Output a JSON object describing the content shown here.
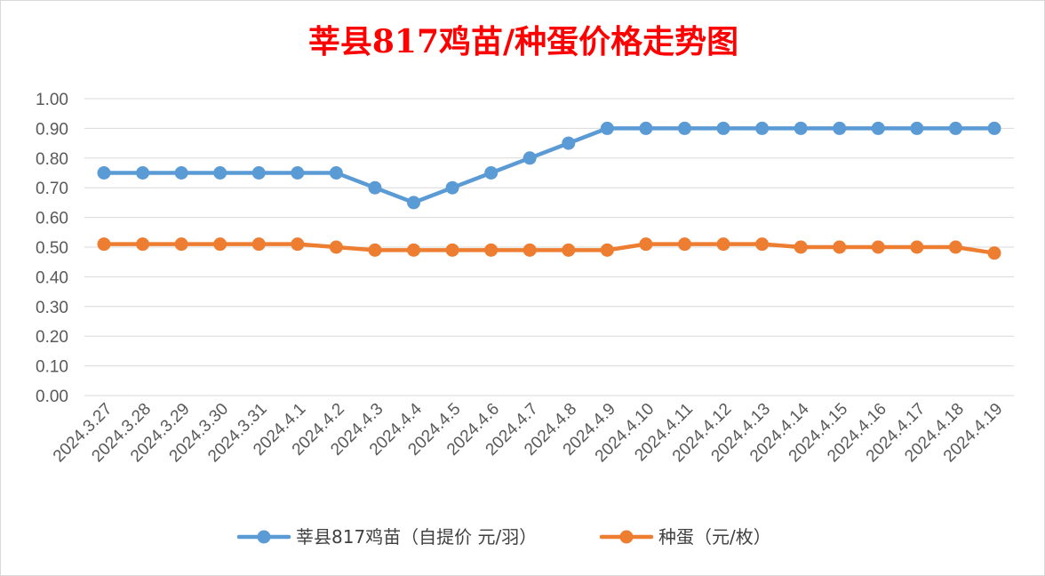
{
  "chart_data": {
    "type": "line",
    "title": "莘县817鸡苗/种蛋价格走势图",
    "xlabel": "",
    "ylabel": "",
    "ylim": [
      0,
      1.0
    ],
    "yticks": [
      "0.00",
      "0.10",
      "0.20",
      "0.30",
      "0.40",
      "0.50",
      "0.60",
      "0.70",
      "0.80",
      "0.90",
      "1.00"
    ],
    "grid": true,
    "legend_position": "bottom",
    "categories": [
      "2024.3.27",
      "2024.3.28",
      "2024.3.29",
      "2024.3.30",
      "2024.3.31",
      "2024.4.1",
      "2024.4.2",
      "2024.4.3",
      "2024.4.4",
      "2024.4.5",
      "2024.4.6",
      "2024.4.7",
      "2024.4.8",
      "2024.4.9",
      "2024.4.10",
      "2024.4.11",
      "2024.4.12",
      "2024.4.13",
      "2024.4.14",
      "2024.4.15",
      "2024.4.16",
      "2024.4.17",
      "2024.4.18",
      "2024.4.19"
    ],
    "series": [
      {
        "name": "莘县817鸡苗（自提价 元/羽）",
        "color": "#5b9bd5",
        "values": [
          0.75,
          0.75,
          0.75,
          0.75,
          0.75,
          0.75,
          0.75,
          0.7,
          0.65,
          0.7,
          0.75,
          0.8,
          0.85,
          0.9,
          0.9,
          0.9,
          0.9,
          0.9,
          0.9,
          0.9,
          0.9,
          0.9,
          0.9,
          0.9
        ]
      },
      {
        "name": "种蛋（元/枚）",
        "color": "#ed7d31",
        "values": [
          0.51,
          0.51,
          0.51,
          0.51,
          0.51,
          0.51,
          0.5,
          0.49,
          0.49,
          0.49,
          0.49,
          0.49,
          0.49,
          0.49,
          0.51,
          0.51,
          0.51,
          0.51,
          0.5,
          0.5,
          0.5,
          0.5,
          0.5,
          0.48
        ]
      }
    ]
  }
}
